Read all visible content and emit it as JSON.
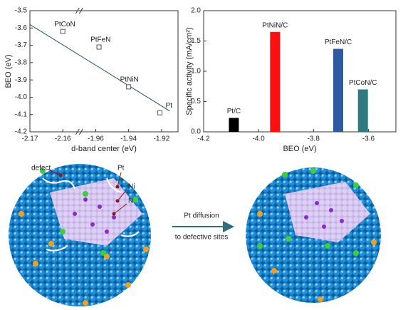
{
  "chart_data": [
    {
      "type": "scatter",
      "x_label": "d-band center (eV)",
      "y_label": "BEO (eV)",
      "labels": [
        "PtCoN",
        "PtFeN",
        "PtNiN",
        "Pt"
      ],
      "x": [
        -2.16,
        -1.958,
        -1.94,
        -1.921
      ],
      "values": [
        -3.62,
        -3.71,
        -3.94,
        -4.09
      ],
      "fit": {
        "x": [
          -2.17,
          -1.915
        ],
        "y": [
          -3.58,
          -4.08
        ]
      },
      "color": "#1f4e79",
      "xlim": [
        -2.17,
        -1.91
      ],
      "xbreak": true,
      "xticks": [
        -2.17,
        -2.16,
        -1.96,
        -1.94,
        -1.92
      ],
      "ylim": [
        -4.2,
        -3.5
      ],
      "yticks": [
        -3.5,
        -3.6,
        -3.7,
        -3.8,
        -3.9,
        {
          "value": -4,
          "label": "-4.0"
        },
        -4.1,
        -4.2
      ]
    },
    {
      "type": "bar",
      "x_label": "BEO (eV)",
      "y_label": "Specific activity (mA/cm²)",
      "categories": [
        "Pt/C",
        "PtNiN/C",
        "PtFeN/C",
        "PtCoN/C"
      ],
      "x": [
        -4.09,
        -3.94,
        -3.71,
        -3.62
      ],
      "values": [
        0.23,
        1.65,
        1.37,
        0.7
      ],
      "colors": [
        "#000000",
        "#ff1010",
        "#2d5aa0",
        "#2e7a80"
      ],
      "xlim": [
        -4.2,
        -3.5
      ],
      "xticks": [
        -4.2,
        {
          "value": -4,
          "label": "-4.0"
        },
        -3.8,
        -3.6
      ],
      "ylim": [
        0,
        2
      ],
      "yticks": [
        {
          "value": 0,
          "label": "0.0"
        },
        0.5,
        {
          "value": 1,
          "label": "1.0"
        },
        1.5,
        {
          "value": 2,
          "label": "2.0"
        }
      ]
    }
  ],
  "diagram": {
    "labels": [
      "defect",
      "Pt",
      "Ni",
      "N"
    ],
    "arrow_text": [
      "Pt diffusion",
      "to defective sites"
    ]
  }
}
